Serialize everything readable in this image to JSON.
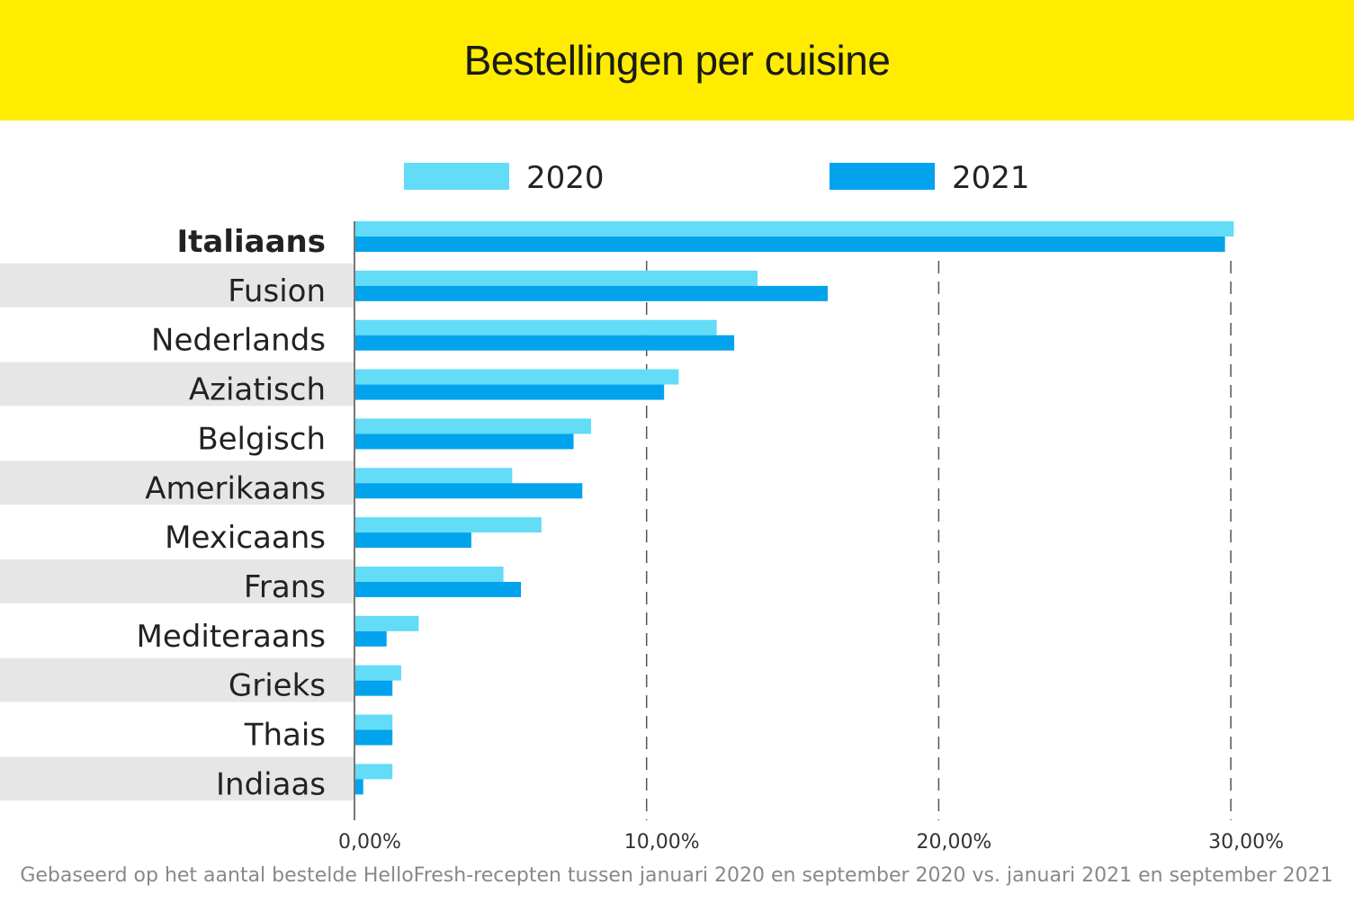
{
  "chart_data": {
    "type": "bar",
    "orientation": "horizontal",
    "title": "Bestellingen per cuisine",
    "categories": [
      "Italiaans",
      "Fusion",
      "Nederlands",
      "Aziatisch",
      "Belgisch",
      "Amerikaans",
      "Mexicaans",
      "Frans",
      "Mediteraans",
      "Grieks",
      "Thais",
      "Indiaas"
    ],
    "series": [
      {
        "name": "2020",
        "color": "#62dcf7",
        "values": [
          30.1,
          13.8,
          12.4,
          11.1,
          8.1,
          5.4,
          6.4,
          5.1,
          2.2,
          1.6,
          1.3,
          1.3
        ]
      },
      {
        "name": "2021",
        "color": "#00a3ec",
        "values": [
          29.8,
          16.2,
          13.0,
          10.6,
          7.5,
          7.8,
          4.0,
          5.7,
          1.1,
          1.3,
          1.3,
          0.3
        ]
      }
    ],
    "xlim": [
      0,
      32
    ],
    "xticks": [
      0,
      10,
      20,
      30
    ],
    "xtick_labels": [
      "0,00%",
      "10,00%",
      "20,00%",
      "30,00%"
    ],
    "grid": "vertical dashed",
    "legend": "top",
    "bold_category": "Italiaans",
    "footnote": "Gebaseerd op het aantal bestelde HelloFresh-recepten tussen januari 2020 en september 2020 vs. januari 2021 en september 2021",
    "header_color": "#ffec00"
  }
}
